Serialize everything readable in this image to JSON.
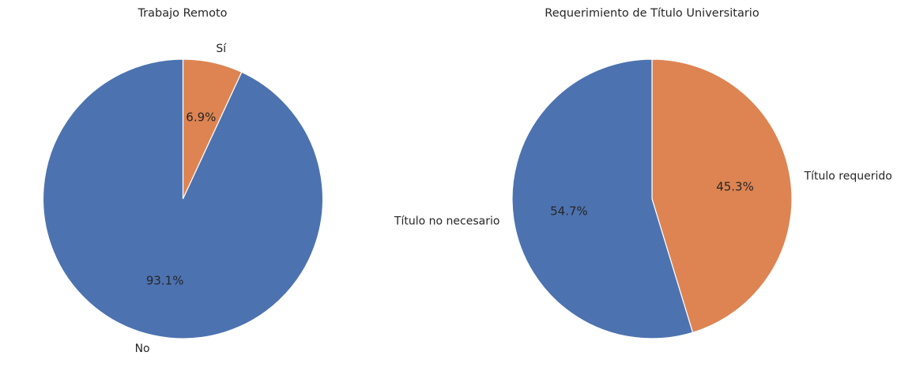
{
  "chart_data": [
    {
      "type": "pie",
      "title": "Trabajo Remoto",
      "start_angle": 90,
      "direction": "clockwise",
      "slices": [
        {
          "label": "Sí",
          "value": 6.9,
          "pct_label": "6.9%",
          "color": "#dd8452"
        },
        {
          "label": "No",
          "value": 93.1,
          "pct_label": "93.1%",
          "color": "#4c72b0"
        }
      ]
    },
    {
      "type": "pie",
      "title": "Requerimiento de Título Universitario",
      "start_angle": 90,
      "direction": "clockwise",
      "slices": [
        {
          "label": "Título requerido",
          "value": 45.3,
          "pct_label": "45.3%",
          "color": "#dd8452"
        },
        {
          "label": "Título no necesario",
          "value": 54.7,
          "pct_label": "54.7%",
          "color": "#4c72b0"
        }
      ]
    }
  ]
}
